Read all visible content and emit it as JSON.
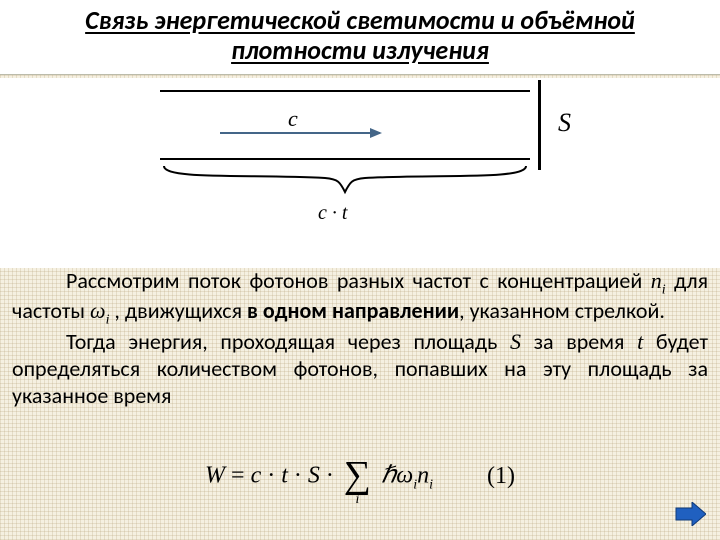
{
  "colors": {
    "background": "#f5f0e1",
    "weave_line": "rgba(180,160,120,0.25)",
    "white": "#ffffff",
    "text": "#000000",
    "arrow": "#446688",
    "nav_fill": "#2060c0",
    "nav_stroke": "#103a78"
  },
  "typography": {
    "body_family": "Calibri, 'Segoe UI', Arial, sans-serif",
    "math_family": "'Times New Roman', serif",
    "title_fontsize": 26,
    "body_fontsize": 22,
    "formula_fontsize": 24
  },
  "title": {
    "line1": "Связь энергетической светимости и объёмной",
    "line2": "плотности излучения"
  },
  "diagram": {
    "c_label": "c",
    "S_label": "S",
    "ct_label_html": "<i>c</i> · <i>t</i>"
  },
  "body": {
    "p1_pre": "Рассмотрим поток фотонов разных частот с концентрацией ",
    "p1_ni_html": "<i class=\"var\">n<sub>i</sub></i>",
    "p1_mid": " для частоты ",
    "p1_omega_html": "<i class=\"var\">ω<sub>i</sub></i> ,",
    "p1_after": " движущихся ",
    "p1_bold": "в одном направлении",
    "p1_tail": ", указанном стрелкой.",
    "p2_pre": "Тогда энергия, проходящая через площадь ",
    "p2_S": "S",
    "p2_mid1": " за время ",
    "p2_t": "t",
    "p2_tail": " будет определяться количеством фотонов, попавших на эту площадь за указанное время"
  },
  "formula": {
    "lhs": "W",
    "terms": [
      "c",
      "t",
      "S"
    ],
    "sum_index": "i",
    "hbar": "ℏ",
    "omega_i": "ω",
    "n_i": "n",
    "eq_number": "(1)"
  }
}
